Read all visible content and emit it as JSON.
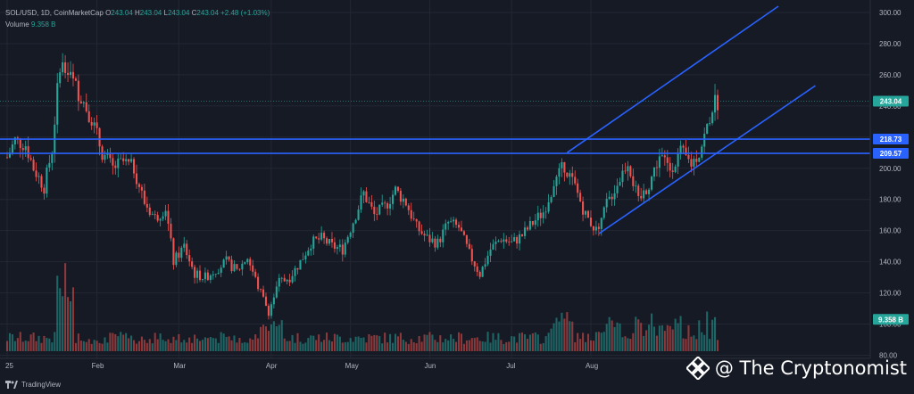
{
  "legend": {
    "symbol": "SOL/USD, 1D, CoinMarketCap",
    "open_label": "O",
    "open": "243.04",
    "high_label": "H",
    "high": "243.04",
    "low_label": "L",
    "low": "243.04",
    "close_label": "C",
    "close": "243.04",
    "change": "+2.48 (+1.03%)",
    "volume_label": "Volume",
    "volume_value": "9.358 B"
  },
  "watermark": {
    "text": "@ The Cryptonomist"
  },
  "brand": {
    "name": "TradingView"
  },
  "colors": {
    "up": "#26a69a",
    "down": "#ef5350",
    "background": "#161a25",
    "trendline": "#2962ff",
    "grid": "#232733"
  },
  "chart_data": {
    "type": "candlestick",
    "title": "SOL/USD, 1D, CoinMarketCap",
    "ylim": [
      78,
      308
    ],
    "y_ticks": [
      "300.00",
      "280.00",
      "260.00",
      "240.00",
      "220.00",
      "200.00",
      "180.00",
      "160.00",
      "140.00",
      "120.00",
      "100.00",
      "80.00"
    ],
    "x_ticks": [
      "25",
      "Feb",
      "Mar",
      "Apr",
      "May",
      "Jun",
      "Jul",
      "Aug"
    ],
    "price_labels": [
      {
        "label": "243.04",
        "value": 243.04,
        "color": "#26a69a"
      },
      {
        "label": "218.73",
        "value": 218.73,
        "color": "#2962ff"
      },
      {
        "label": "209.57",
        "value": 209.57,
        "color": "#2962ff"
      },
      {
        "label": "9.358 B",
        "value": 103,
        "color": "#26a69a"
      }
    ],
    "horizontal_levels": [
      218.73,
      209.57
    ],
    "trend_channel": {
      "upper": [
        {
          "day": 212,
          "price": 210
        },
        {
          "day": 292,
          "price": 304
        }
      ],
      "lower": [
        {
          "day": 224,
          "price": 158
        },
        {
          "day": 306,
          "price": 253
        }
      ]
    },
    "price_path": [
      [
        0,
        207
      ],
      [
        3,
        218
      ],
      [
        7,
        215
      ],
      [
        10,
        200
      ],
      [
        14,
        188
      ],
      [
        17,
        212
      ],
      [
        20,
        268
      ],
      [
        24,
        258
      ],
      [
        28,
        246
      ],
      [
        32,
        232
      ],
      [
        36,
        210
      ],
      [
        40,
        200
      ],
      [
        44,
        204
      ],
      [
        48,
        200
      ],
      [
        52,
        178
      ],
      [
        56,
        168
      ],
      [
        60,
        175
      ],
      [
        63,
        140
      ],
      [
        67,
        150
      ],
      [
        71,
        132
      ],
      [
        75,
        130
      ],
      [
        79,
        135
      ],
      [
        83,
        140
      ],
      [
        87,
        134
      ],
      [
        91,
        143
      ],
      [
        95,
        124
      ],
      [
        99,
        108
      ],
      [
        103,
        127
      ],
      [
        107,
        130
      ],
      [
        111,
        140
      ],
      [
        115,
        152
      ],
      [
        119,
        155
      ],
      [
        123,
        150
      ],
      [
        127,
        148
      ],
      [
        131,
        166
      ],
      [
        135,
        184
      ],
      [
        139,
        170
      ],
      [
        143,
        175
      ],
      [
        147,
        186
      ],
      [
        151,
        178
      ],
      [
        155,
        162
      ],
      [
        159,
        155
      ],
      [
        163,
        152
      ],
      [
        167,
        165
      ],
      [
        171,
        162
      ],
      [
        175,
        145
      ],
      [
        179,
        132
      ],
      [
        183,
        148
      ],
      [
        187,
        155
      ],
      [
        191,
        152
      ],
      [
        195,
        157
      ],
      [
        199,
        165
      ],
      [
        203,
        172
      ],
      [
        207,
        190
      ],
      [
        211,
        202
      ],
      [
        215,
        188
      ],
      [
        219,
        170
      ],
      [
        223,
        160
      ],
      [
        227,
        177
      ],
      [
        231,
        190
      ],
      [
        235,
        205
      ],
      [
        239,
        178
      ],
      [
        243,
        190
      ],
      [
        247,
        208
      ],
      [
        251,
        200
      ],
      [
        255,
        210
      ],
      [
        259,
        203
      ],
      [
        262,
        210
      ],
      [
        265,
        226
      ],
      [
        267,
        240
      ],
      [
        269,
        243
      ]
    ],
    "total_days": 270
  }
}
